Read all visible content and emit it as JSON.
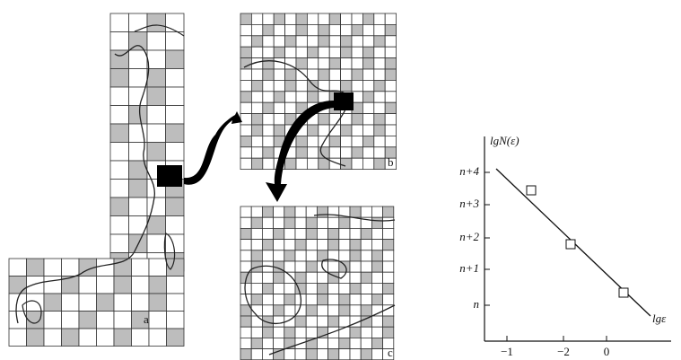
{
  "panels": {
    "a": "a",
    "b": "b",
    "c": "c"
  },
  "graph": {
    "y_label": "lgN(ε)",
    "x_label": "lgε",
    "y_ticks": [
      "n+4",
      "n+3",
      "n+2",
      "n+1",
      "n"
    ],
    "x_ticks": [
      "−1",
      "−2",
      "0"
    ]
  }
}
